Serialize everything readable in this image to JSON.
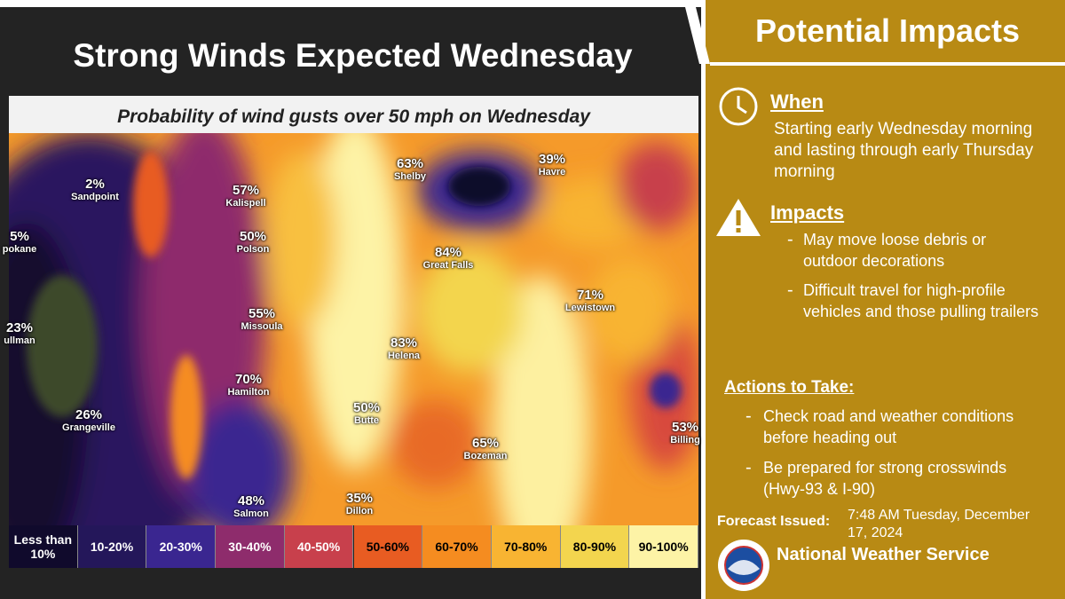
{
  "header": {
    "title": "Strong Winds Expected Wednesday"
  },
  "map": {
    "title": "Probability of wind gusts over 50 mph on Wednesday",
    "locations": [
      {
        "name": "Sandpoint",
        "value": "2%"
      },
      {
        "name": "Kalispell",
        "value": "57%"
      },
      {
        "name": "Polson",
        "value": "50%"
      },
      {
        "name": "pokane",
        "value": "5%"
      },
      {
        "name": "ullman",
        "value": "23%"
      },
      {
        "name": "Missoula",
        "value": "55%"
      },
      {
        "name": "Hamilton",
        "value": "70%"
      },
      {
        "name": "Grangeville",
        "value": "26%"
      },
      {
        "name": "Salmon",
        "value": "48%"
      },
      {
        "name": "Dillon",
        "value": "35%"
      },
      {
        "name": "Butte",
        "value": "50%"
      },
      {
        "name": "Helena",
        "value": "83%"
      },
      {
        "name": "Great Falls",
        "value": "84%"
      },
      {
        "name": "Shelby",
        "value": "63%"
      },
      {
        "name": "Havre",
        "value": "39%"
      },
      {
        "name": "Lewistown",
        "value": "71%"
      },
      {
        "name": "Bozeman",
        "value": "65%"
      },
      {
        "name": "Billing",
        "value": "53%"
      }
    ],
    "legend": [
      {
        "label": "Less than 10%",
        "color": "#100a2c"
      },
      {
        "label": "10-20%",
        "color": "#24175a"
      },
      {
        "label": "20-30%",
        "color": "#3a2690"
      },
      {
        "label": "30-40%",
        "color": "#8e2c6c"
      },
      {
        "label": "40-50%",
        "color": "#c8404c"
      },
      {
        "label": "50-60%",
        "color": "#e85c22"
      },
      {
        "label": "60-70%",
        "color": "#f58c20"
      },
      {
        "label": "70-80%",
        "color": "#f8b432"
      },
      {
        "label": "80-90%",
        "color": "#f3d54e"
      },
      {
        "label": "90-100%",
        "color": "#fdf3a6"
      }
    ]
  },
  "panel": {
    "title": "Potential Impacts",
    "when": {
      "heading": "When",
      "text": "Starting early Wednesday morning and lasting through early Thursday morning"
    },
    "impacts": {
      "heading": "Impacts",
      "items": [
        "May move loose debris or outdoor decorations",
        "Difficult travel for high-profile vehicles and those pulling trailers"
      ]
    },
    "actions": {
      "heading": "Actions to Take:",
      "items": [
        "Check road and weather conditions before heading out",
        "Be prepared for strong crosswinds (Hwy-93 & I-90)"
      ]
    },
    "issued_label": "Forecast Issued:",
    "issued": "7:48 AM Tuesday, December 17, 2024",
    "agency": "National Weather Service"
  }
}
